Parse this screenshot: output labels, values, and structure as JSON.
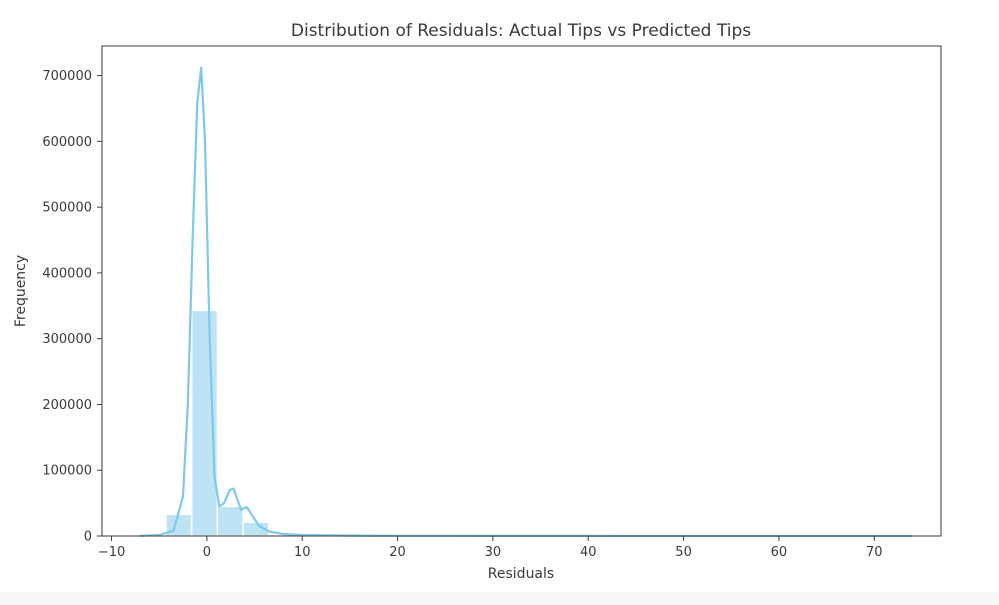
{
  "chart_data": {
    "type": "bar",
    "title": "Distribution of Residuals: Actual Tips vs Predicted Tips",
    "xlabel": "Residuals",
    "ylabel": "Frequency",
    "xlim": [
      -11,
      77
    ],
    "ylim": [
      0,
      745000
    ],
    "xticks": [
      -10,
      0,
      10,
      20,
      30,
      40,
      50,
      60,
      70
    ],
    "yticks": [
      0,
      100000,
      200000,
      300000,
      400000,
      500000,
      600000,
      700000
    ],
    "grid": false,
    "legend": false,
    "bar_color": "#87ceeb",
    "kde_color": "#7ec8ea",
    "bins": [
      {
        "x0": -7.0,
        "x1": -4.3,
        "count": 600
      },
      {
        "x0": -4.3,
        "x1": -1.6,
        "count": 33000
      },
      {
        "x0": -1.6,
        "x1": 1.1,
        "count": 343000
      },
      {
        "x0": 1.1,
        "x1": 3.8,
        "count": 45000
      },
      {
        "x0": 3.8,
        "x1": 6.5,
        "count": 21000
      },
      {
        "x0": 6.5,
        "x1": 9.2,
        "count": 2500
      },
      {
        "x0": 9.2,
        "x1": 11.9,
        "count": 700
      },
      {
        "x0": 11.9,
        "x1": 14.6,
        "count": 300
      },
      {
        "x0": 14.6,
        "x1": 17.3,
        "count": 150
      },
      {
        "x0": 17.3,
        "x1": 20.0,
        "count": 80
      },
      {
        "x0": 20.0,
        "x1": 74.0,
        "count": 20
      }
    ],
    "kde": [
      {
        "x": -7,
        "y": 300
      },
      {
        "x": -5,
        "y": 1500
      },
      {
        "x": -3.5,
        "y": 8000
      },
      {
        "x": -2.5,
        "y": 60000
      },
      {
        "x": -2,
        "y": 200000
      },
      {
        "x": -1.5,
        "y": 450000
      },
      {
        "x": -1,
        "y": 660000
      },
      {
        "x": -0.6,
        "y": 712000
      },
      {
        "x": -0.2,
        "y": 600000
      },
      {
        "x": 0.3,
        "y": 300000
      },
      {
        "x": 0.8,
        "y": 90000
      },
      {
        "x": 1.3,
        "y": 45000
      },
      {
        "x": 1.8,
        "y": 50000
      },
      {
        "x": 2.4,
        "y": 70000
      },
      {
        "x": 2.8,
        "y": 72000
      },
      {
        "x": 3.2,
        "y": 55000
      },
      {
        "x": 3.6,
        "y": 40000
      },
      {
        "x": 4.2,
        "y": 44000
      },
      {
        "x": 4.8,
        "y": 30000
      },
      {
        "x": 5.5,
        "y": 15000
      },
      {
        "x": 6.5,
        "y": 7000
      },
      {
        "x": 8,
        "y": 3000
      },
      {
        "x": 10,
        "y": 1500
      },
      {
        "x": 15,
        "y": 600
      },
      {
        "x": 20,
        "y": 300
      },
      {
        "x": 30,
        "y": 150
      },
      {
        "x": 50,
        "y": 60
      },
      {
        "x": 74,
        "y": 20
      }
    ]
  }
}
